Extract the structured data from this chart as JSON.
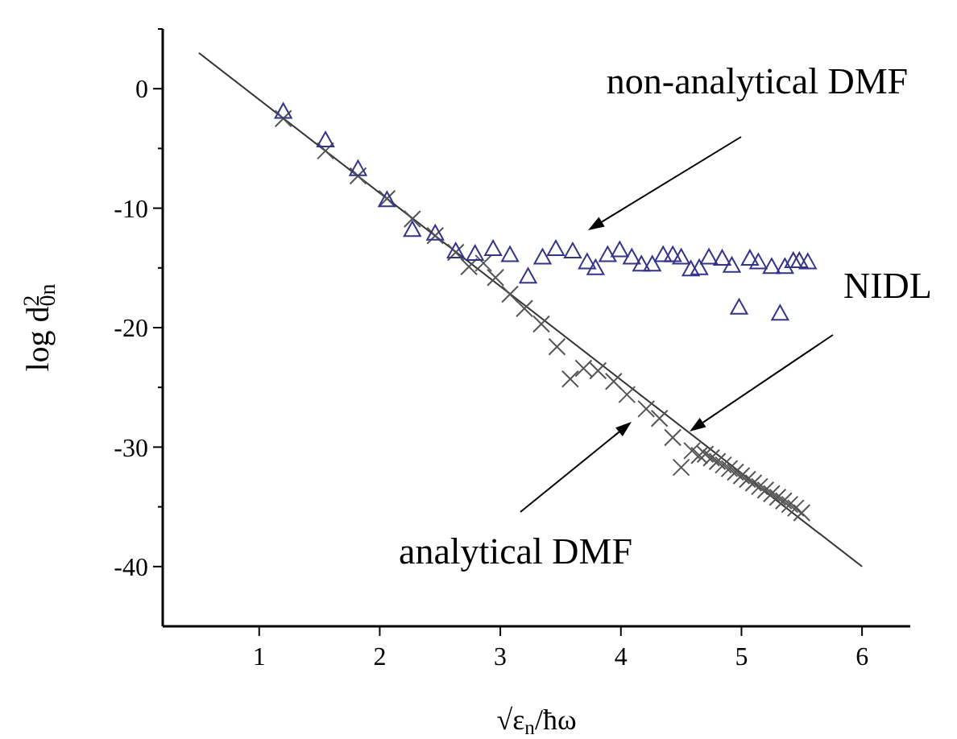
{
  "chart_data": {
    "type": "scatter",
    "xlabel": "√ε$_{n}$/ħω",
    "ylabel": "log d$_{0n}$$^{2}$",
    "xlim": [
      0.2,
      6.4
    ],
    "ylim": [
      -45,
      5
    ],
    "xticks": [
      1,
      2,
      3,
      4,
      5,
      6
    ],
    "yticks": [
      -40,
      {
        "value": -35,
        "label": null
      },
      -30,
      {
        "value": -25,
        "label": null
      },
      -20,
      {
        "value": -15,
        "label": null
      },
      -10,
      {
        "value": -5,
        "label": null
      },
      0,
      {
        "value": 5,
        "label": null
      }
    ],
    "grid": false,
    "series": [
      {
        "type": "line",
        "color": "#333333",
        "marker": "none",
        "line_style": "solid",
        "x": [
          0.5,
          6
        ],
        "values": [
          3,
          -40
        ]
      },
      {
        "color": "#555555",
        "marker": "cross",
        "x": [
          1.2,
          1.55,
          1.82,
          2.06,
          2.27,
          2.46,
          2.63,
          2.74,
          2.86,
          2.96,
          3.08,
          3.2,
          3.34,
          3.47,
          3.58,
          3.69,
          3.81,
          3.94,
          4.05,
          4.21,
          4.32,
          4.43,
          4.5,
          4.59,
          4.65,
          4.7,
          4.75,
          4.8,
          4.85,
          4.9,
          4.95,
          5.0,
          5.05,
          5.1,
          5.15,
          5.2,
          5.25,
          5.3,
          5.35,
          5.4,
          5.45,
          5.5
        ],
        "values": [
          -2.5,
          -5.2,
          -7.3,
          -9.2,
          -10.9,
          -12.3,
          -13.7,
          -14.9,
          -14.6,
          -15.8,
          -17.2,
          -18.4,
          -19.7,
          -21.6,
          -24.3,
          -23.4,
          -23.6,
          -24.5,
          -25.6,
          -26.8,
          -27.6,
          -29.2,
          -31.7,
          -30.3,
          -30.7,
          -30.6,
          -30.9,
          -31.2,
          -31.5,
          -31.8,
          -32.1,
          -32.4,
          -32.7,
          -33.0,
          -33.3,
          -33.6,
          -33.9,
          -34.2,
          -34.5,
          -34.8,
          -35.1,
          -35.5
        ]
      },
      {
        "color": "#33338a",
        "marker": "triangle",
        "x": [
          1.2,
          1.55,
          1.82,
          2.06,
          2.27,
          2.46,
          2.63,
          2.79,
          2.94,
          3.08,
          3.23,
          3.35,
          3.46,
          3.6,
          3.72,
          3.79,
          3.89,
          3.99,
          4.09,
          4.17,
          4.26,
          4.35,
          4.43,
          4.5,
          4.58,
          4.65,
          4.73,
          4.84,
          4.92,
          4.98,
          5.07,
          5.14,
          5.25,
          5.32,
          5.36,
          5.43,
          5.48,
          5.55
        ],
        "values": [
          -1.9,
          -4.3,
          -6.7,
          -9.3,
          -11.8,
          -12.1,
          -13.6,
          -13.8,
          -13.4,
          -13.9,
          -15.7,
          -14.1,
          -13.4,
          -13.6,
          -14.5,
          -15.0,
          -13.9,
          -13.5,
          -14.1,
          -14.7,
          -14.7,
          -13.9,
          -13.9,
          -14.1,
          -15.1,
          -15.0,
          -14.1,
          -14.2,
          -14.8,
          -18.3,
          -14.2,
          -14.5,
          -14.9,
          -18.8,
          -14.9,
          -14.4,
          -14.4,
          -14.5
        ]
      }
    ],
    "annotations": [
      "non-analytical DMF",
      "NIDL",
      "analytical DMF"
    ]
  }
}
